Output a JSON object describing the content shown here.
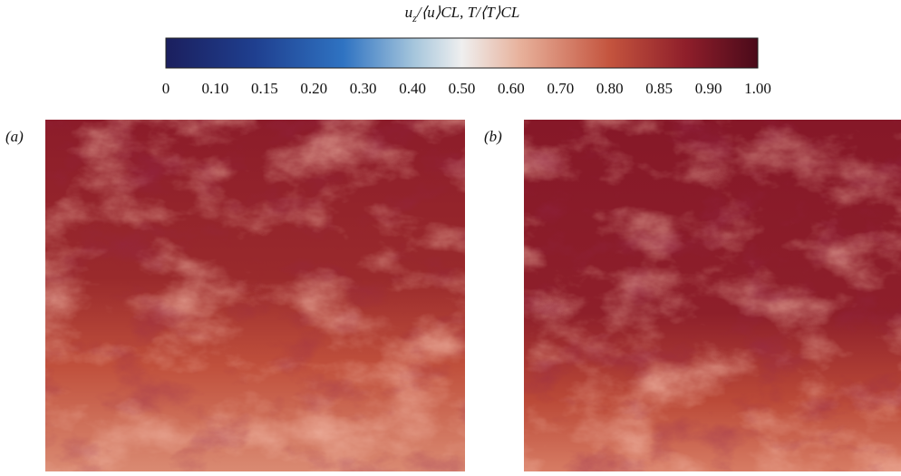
{
  "colorbar": {
    "label": {
      "base": "u",
      "sub": "z",
      "rest": "/⟨u⟩CL, T/⟨T⟩CL"
    },
    "ticks": [
      "0",
      "0.10",
      "0.15",
      "0.20",
      "0.30",
      "0.40",
      "0.50",
      "0.60",
      "0.70",
      "0.80",
      "0.85",
      "0.90",
      "1.00"
    ]
  },
  "panels": [
    {
      "label": "(a)"
    },
    {
      "label": "(b)"
    }
  ]
}
